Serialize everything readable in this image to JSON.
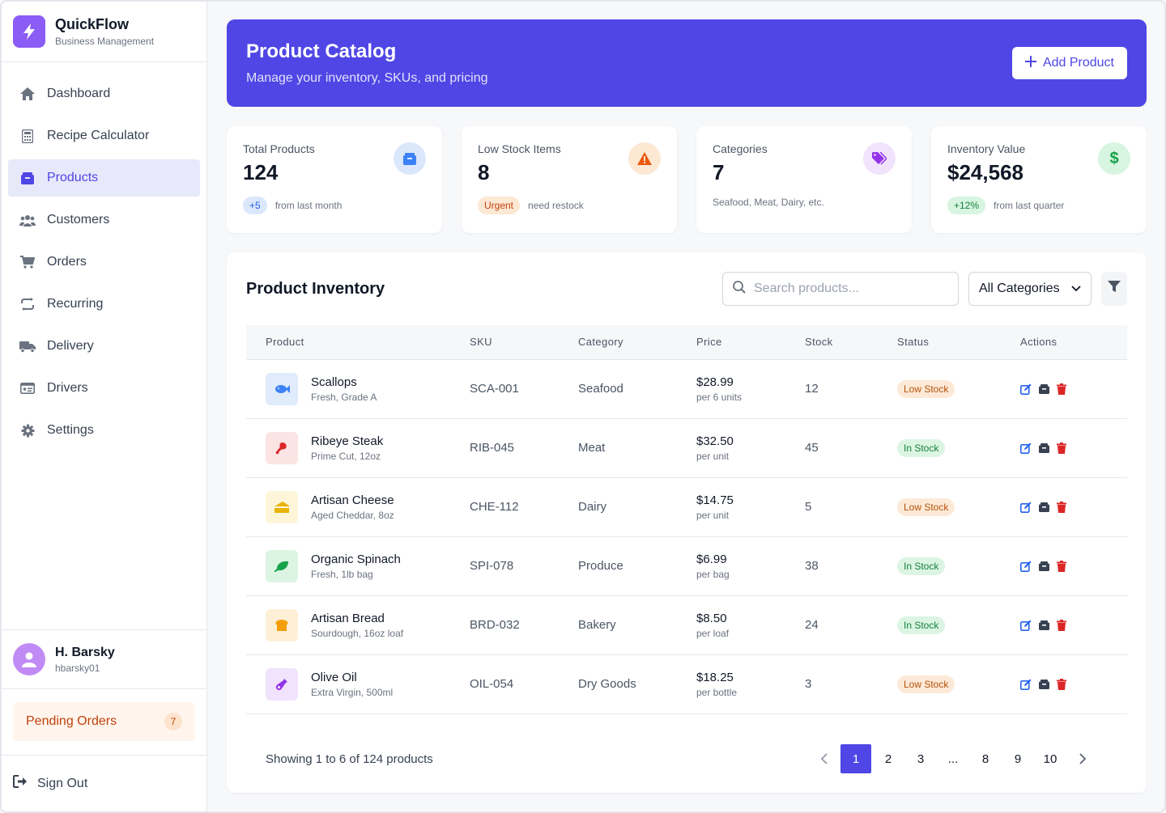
{
  "brand": {
    "name": "QuickFlow",
    "subtitle": "Business Management",
    "icon": "bolt-icon",
    "color": "#8b5cf6"
  },
  "sidebar": {
    "items": [
      {
        "label": "Dashboard",
        "icon": "home-icon",
        "active": false
      },
      {
        "label": "Recipe Calculator",
        "icon": "calculator-icon",
        "active": false
      },
      {
        "label": "Products",
        "icon": "box-icon",
        "active": true
      },
      {
        "label": "Customers",
        "icon": "users-icon",
        "active": false
      },
      {
        "label": "Orders",
        "icon": "cart-icon",
        "active": false
      },
      {
        "label": "Recurring",
        "icon": "repeat-icon",
        "active": false
      },
      {
        "label": "Delivery",
        "icon": "truck-icon",
        "active": false
      },
      {
        "label": "Drivers",
        "icon": "id-card-icon",
        "active": false
      },
      {
        "label": "Settings",
        "icon": "gear-icon",
        "active": false
      }
    ],
    "user": {
      "name": "H. Barsky",
      "handle": "hbarsky01"
    },
    "pending": {
      "label": "Pending Orders",
      "count": "7"
    },
    "sign_out": "Sign Out"
  },
  "header": {
    "title": "Product Catalog",
    "subtitle": "Manage your inventory, SKUs, and pricing",
    "add_label": "Add Product",
    "accent": "#4f46e5"
  },
  "stats": [
    {
      "label": "Total Products",
      "value": "124",
      "badge": "+5",
      "note": "from last month",
      "icon": "box-icon"
    },
    {
      "label": "Low Stock Items",
      "value": "8",
      "badge": "Urgent",
      "note": "need restock",
      "icon": "warning-icon"
    },
    {
      "label": "Categories",
      "value": "7",
      "badge": "",
      "note": "Seafood, Meat, Dairy, etc.",
      "icon": "tag-icon"
    },
    {
      "label": "Inventory Value",
      "value": "$24,568",
      "badge": "+12%",
      "note": "from last quarter",
      "icon": "dollar-icon"
    }
  ],
  "inventory": {
    "title": "Product Inventory",
    "search_placeholder": "Search products...",
    "category_select": "All Categories",
    "columns": [
      "Product",
      "SKU",
      "Category",
      "Price",
      "Stock",
      "Status",
      "Actions"
    ],
    "rows": [
      {
        "name": "Scallops",
        "desc": "Fresh, Grade A",
        "sku": "SCA-001",
        "category": "Seafood",
        "price": "$28.99",
        "unit": "per 6 units",
        "stock": "12",
        "status": "Low Stock",
        "icon": "fish-icon"
      },
      {
        "name": "Ribeye Steak",
        "desc": "Prime Cut, 12oz",
        "sku": "RIB-045",
        "category": "Meat",
        "price": "$32.50",
        "unit": "per unit",
        "stock": "45",
        "status": "In Stock",
        "icon": "meat-icon"
      },
      {
        "name": "Artisan Cheese",
        "desc": "Aged Cheddar, 8oz",
        "sku": "CHE-112",
        "category": "Dairy",
        "price": "$14.75",
        "unit": "per unit",
        "stock": "5",
        "status": "Low Stock",
        "icon": "cheese-icon"
      },
      {
        "name": "Organic Spinach",
        "desc": "Fresh, 1lb bag",
        "sku": "SPI-078",
        "category": "Produce",
        "price": "$6.99",
        "unit": "per bag",
        "stock": "38",
        "status": "In Stock",
        "icon": "leaf-icon"
      },
      {
        "name": "Artisan Bread",
        "desc": "Sourdough, 16oz loaf",
        "sku": "BRD-032",
        "category": "Bakery",
        "price": "$8.50",
        "unit": "per loaf",
        "stock": "24",
        "status": "In Stock",
        "icon": "bread-icon"
      },
      {
        "name": "Olive Oil",
        "desc": "Extra Virgin, 500ml",
        "sku": "OIL-054",
        "category": "Dry Goods",
        "price": "$18.25",
        "unit": "per bottle",
        "stock": "3",
        "status": "Low Stock",
        "icon": "bottle-icon"
      }
    ],
    "showing": "Showing 1 to 6 of 124 products",
    "pages": [
      "1",
      "2",
      "3",
      "...",
      "8",
      "9",
      "10"
    ],
    "current_page": "1"
  }
}
